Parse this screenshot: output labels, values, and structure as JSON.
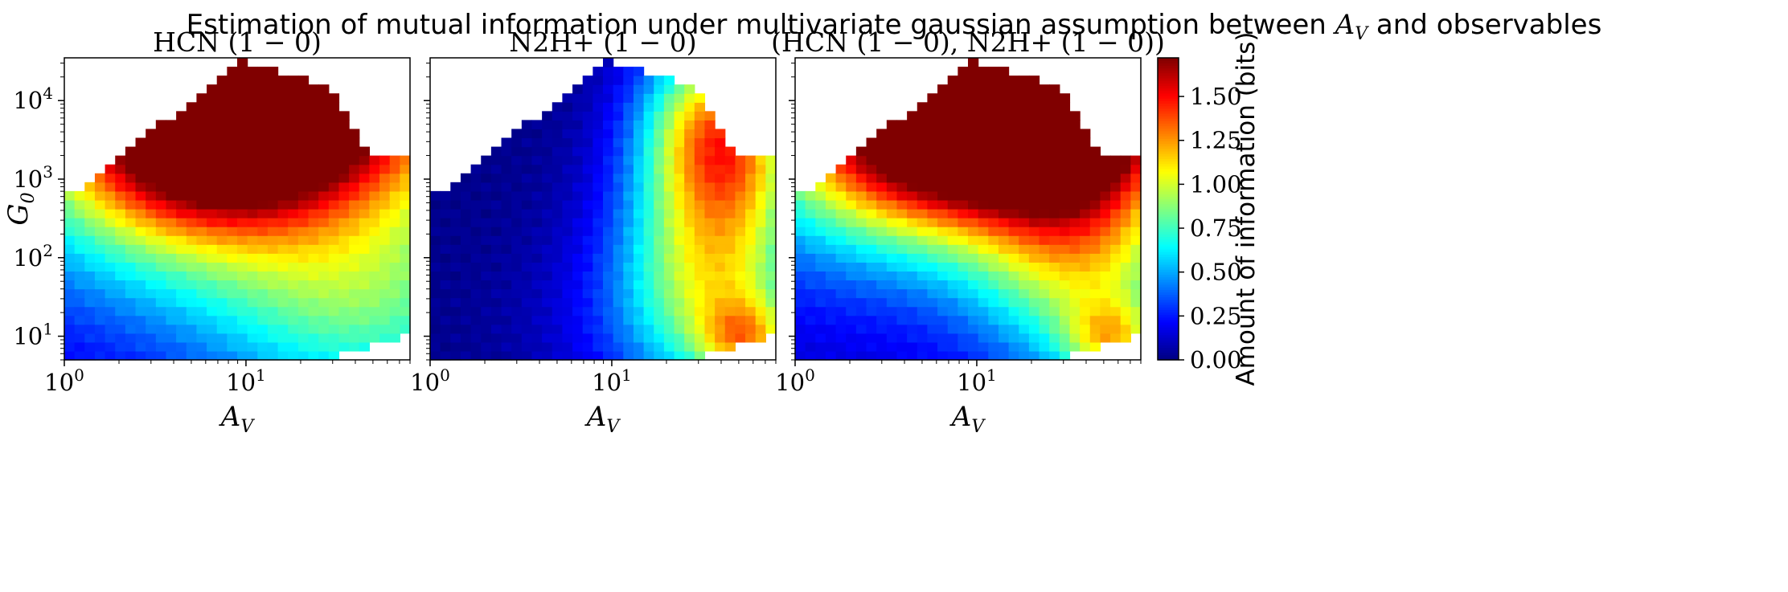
{
  "figure": {
    "title_prefix": "Estimation of mutual information under multivariate gaussian assumption between ",
    "title_symbol": "A",
    "title_symbol_sub": "V",
    "title_suffix": " and observables",
    "colormap": [
      "#00007f",
      "#0000ff",
      "#007fff",
      "#00ffff",
      "#7fff7f",
      "#ffff00",
      "#ff7f00",
      "#ff0000",
      "#7f0000"
    ]
  },
  "chart_data": [
    {
      "type": "heatmap",
      "panel_title": "HCN (1 − 0)",
      "xlabel": "A",
      "xlabel_sub": "V",
      "ylabel": "G",
      "ylabel_sub": "0",
      "x_scale": "log",
      "y_scale": "log",
      "xlim": [
        1,
        80
      ],
      "ylim": [
        5,
        35000
      ],
      "x_ticks": [
        {
          "value": 1,
          "base": "10",
          "exp": "0"
        },
        {
          "value": 10,
          "base": "10",
          "exp": "1"
        }
      ],
      "y_ticks": [
        {
          "value": 10,
          "base": "10",
          "exp": "1"
        },
        {
          "value": 100,
          "base": "10",
          "exp": "2"
        },
        {
          "value": 1000,
          "base": "10",
          "exp": "3"
        },
        {
          "value": 10000,
          "base": "10",
          "exp": "4"
        }
      ],
      "bins_x": 34,
      "bins_y": 34,
      "hotspots": [
        {
          "x": 11,
          "y": 30000,
          "value": 1.45,
          "sx": 0.16,
          "sy": 0.1
        },
        {
          "x": 9,
          "y": 12000,
          "value": 1.0,
          "sx": 0.22,
          "sy": 0.22
        },
        {
          "x": 15,
          "y": 6000,
          "value": 0.72,
          "sx": 0.2,
          "sy": 0.2
        },
        {
          "x": 6,
          "y": 1500,
          "value": 0.65,
          "sx": 0.15,
          "sy": 0.2
        },
        {
          "x": 4.2,
          "y": 700,
          "value": 0.4,
          "sx": 0.22,
          "sy": 0.3
        },
        {
          "x": 30,
          "y": 200,
          "value": 0.3,
          "sx": 0.3,
          "sy": 0.35
        },
        {
          "x": 60,
          "y": 120,
          "value": 0.25,
          "sx": 0.2,
          "sy": 0.4
        },
        {
          "x": 40,
          "y": 15,
          "value": 0.25,
          "sx": 0.15,
          "sy": 0.25
        }
      ],
      "base_value": 0.12
    },
    {
      "type": "heatmap",
      "panel_title": "N2H+ (1 − 0)",
      "xlabel": "A",
      "xlabel_sub": "V",
      "x_scale": "log",
      "y_scale": "log",
      "xlim": [
        1,
        80
      ],
      "ylim": [
        5,
        35000
      ],
      "x_ticks": [
        {
          "value": 1,
          "base": "10",
          "exp": "0"
        },
        {
          "value": 10,
          "base": "10",
          "exp": "1"
        }
      ],
      "bins_x": 34,
      "bins_y": 34,
      "hotspots": [
        {
          "x": 35,
          "y": 8000,
          "value": 0.62,
          "sx": 0.08,
          "sy": 0.22
        },
        {
          "x": 48,
          "y": 2500,
          "value": 0.5,
          "sx": 0.08,
          "sy": 0.2
        },
        {
          "x": 35,
          "y": 350,
          "value": 0.48,
          "sx": 0.1,
          "sy": 0.3
        },
        {
          "x": 40,
          "y": 60,
          "value": 0.45,
          "sx": 0.1,
          "sy": 0.3
        },
        {
          "x": 55,
          "y": 9,
          "value": 0.6,
          "sx": 0.05,
          "sy": 0.1
        },
        {
          "x": 30,
          "y": 15,
          "value": 0.3,
          "sx": 0.15,
          "sy": 0.25
        }
      ],
      "base_value": 0.02
    },
    {
      "type": "heatmap",
      "panel_title": "(HCN (1 − 0), N2H+ (1 − 0))",
      "xlabel": "A",
      "xlabel_sub": "V",
      "x_scale": "log",
      "y_scale": "log",
      "xlim": [
        1,
        80
      ],
      "ylim": [
        5,
        35000
      ],
      "x_ticks": [
        {
          "value": 1,
          "base": "10",
          "exp": "0"
        },
        {
          "value": 10,
          "base": "10",
          "exp": "1"
        }
      ],
      "bins_x": 34,
      "bins_y": 34,
      "hotspots": [
        {
          "x": 11,
          "y": 30000,
          "value": 1.45,
          "sx": 0.16,
          "sy": 0.1
        },
        {
          "x": 9,
          "y": 12000,
          "value": 1.0,
          "sx": 0.22,
          "sy": 0.22
        },
        {
          "x": 15,
          "y": 6000,
          "value": 0.72,
          "sx": 0.2,
          "sy": 0.2
        },
        {
          "x": 6,
          "y": 1500,
          "value": 0.65,
          "sx": 0.15,
          "sy": 0.2
        },
        {
          "x": 4.2,
          "y": 700,
          "value": 0.4,
          "sx": 0.22,
          "sy": 0.3
        },
        {
          "x": 35,
          "y": 8000,
          "value": 0.55,
          "sx": 0.1,
          "sy": 0.22
        },
        {
          "x": 35,
          "y": 400,
          "value": 0.5,
          "sx": 0.12,
          "sy": 0.3
        },
        {
          "x": 45,
          "y": 60,
          "value": 0.45,
          "sx": 0.12,
          "sy": 0.3
        },
        {
          "x": 55,
          "y": 9,
          "value": 0.6,
          "sx": 0.05,
          "sy": 0.1
        }
      ],
      "base_value": 0.12
    }
  ],
  "colorbar": {
    "label": "Amount of information (bits)",
    "min": 0,
    "max": 1.72,
    "ticks": [
      "0.00",
      "0.25",
      "0.50",
      "0.75",
      "1.00",
      "1.25",
      "1.50"
    ],
    "tick_values": [
      0,
      0.25,
      0.5,
      0.75,
      1.0,
      1.25,
      1.5
    ]
  }
}
